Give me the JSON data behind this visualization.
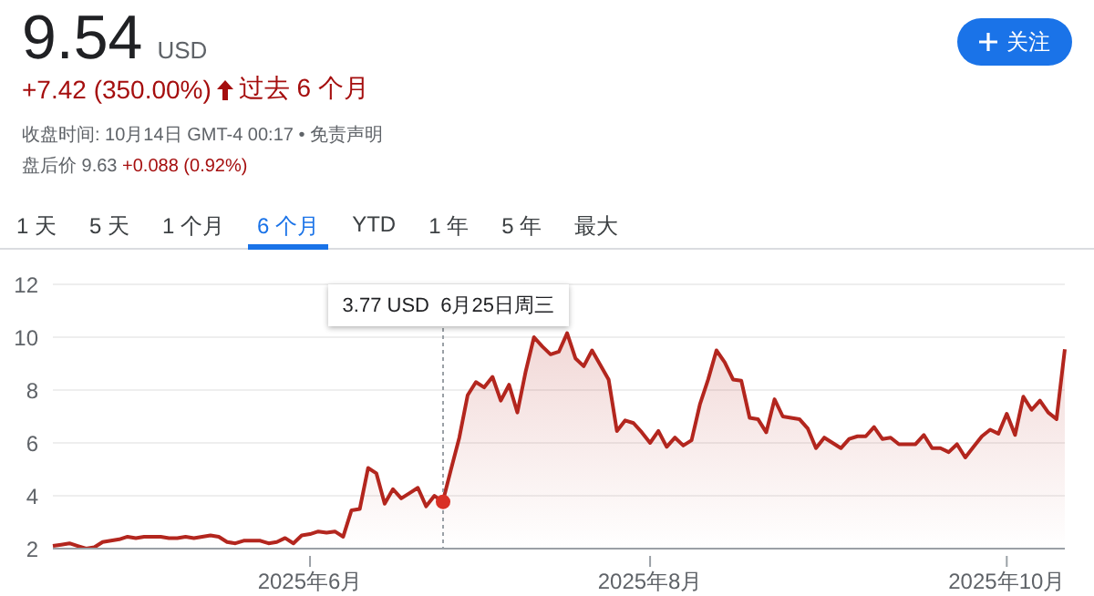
{
  "chart_data": {
    "type": "area",
    "title": "9.54",
    "subtitle": "USD",
    "annotations": [
      "+7.42 (350.00%)",
      "过去 6 个月",
      "收盘时间: 10月14日 GMT-4 00:17 • 免责声明",
      "盘后价 9.63",
      "+0.088 (0.92%)",
      "1 天",
      "5 天",
      "1 个月",
      "6 个月",
      "YTD",
      "1 年",
      "5 年",
      "最大",
      "关注",
      "3.77 USD  6月25日周三"
    ],
    "categories": [
      null,
      null,
      null,
      null,
      null,
      null,
      null,
      null,
      null,
      null,
      null,
      null,
      null,
      null,
      null,
      null,
      null,
      null,
      null,
      null,
      null,
      null,
      null,
      null,
      null,
      null,
      null,
      null,
      null,
      null,
      null,
      "2025年6月",
      null,
      null,
      null,
      null,
      null,
      null,
      null,
      null,
      null,
      null,
      null,
      null,
      null,
      null,
      null,
      null,
      null,
      null,
      null,
      null,
      null,
      null,
      null,
      null,
      null,
      null,
      null,
      null,
      null,
      null,
      null,
      null,
      null,
      null,
      null,
      null,
      null,
      null,
      null,
      null,
      "2025年8月",
      null,
      null,
      null,
      null,
      null,
      null,
      null,
      null,
      null,
      null,
      null,
      null,
      null,
      null,
      null,
      null,
      null,
      null,
      null,
      null,
      null,
      null,
      null,
      null,
      null,
      null,
      null,
      null,
      null,
      null,
      null,
      null,
      null,
      null,
      null,
      null,
      null,
      null,
      null,
      null,
      null,
      null,
      "2025年10月",
      null,
      null,
      null,
      null,
      null,
      null,
      null
    ],
    "series": [
      {
        "color": "#b3261e",
        "values": [
          2.1,
          2.15,
          2.2,
          2.1,
          2.0,
          2.05,
          2.25,
          2.3,
          2.35,
          2.45,
          2.4,
          2.45,
          2.45,
          2.45,
          2.4,
          2.4,
          2.45,
          2.4,
          2.45,
          2.5,
          2.45,
          2.25,
          2.2,
          2.3,
          2.3,
          2.3,
          2.2,
          2.25,
          2.4,
          2.2,
          2.5,
          2.55,
          2.65,
          2.6,
          2.65,
          2.45,
          3.45,
          3.5,
          5.05,
          4.85,
          3.7,
          4.25,
          3.9,
          4.1,
          4.3,
          3.6,
          4.0,
          3.77,
          5.0,
          6.2,
          7.8,
          8.3,
          8.1,
          8.5,
          7.6,
          8.2,
          7.15,
          8.7,
          10.0,
          9.65,
          9.35,
          9.45,
          10.15,
          9.2,
          8.9,
          9.5,
          8.95,
          8.4,
          6.45,
          6.85,
          6.75,
          6.4,
          6.0,
          6.45,
          5.85,
          6.2,
          5.9,
          6.1,
          7.45,
          8.4,
          9.5,
          9.05,
          8.4,
          8.35,
          6.95,
          6.9,
          6.4,
          7.65,
          7.0,
          6.95,
          6.9,
          6.55,
          5.8,
          6.2,
          6.0,
          5.8,
          6.15,
          6.25,
          6.25,
          6.6,
          6.15,
          6.2,
          5.95,
          5.95,
          5.95,
          6.3,
          5.8,
          5.8,
          5.65,
          5.95,
          5.45,
          5.85,
          6.25,
          6.5,
          6.35,
          7.1,
          6.3,
          7.75,
          7.25,
          7.6,
          7.15,
          6.9,
          9.54
        ]
      }
    ],
    "ylim": [
      2,
      12
    ],
    "yticks": [
      2,
      4,
      6,
      8,
      10,
      12
    ],
    "grid": "y",
    "legend": false
  }
}
